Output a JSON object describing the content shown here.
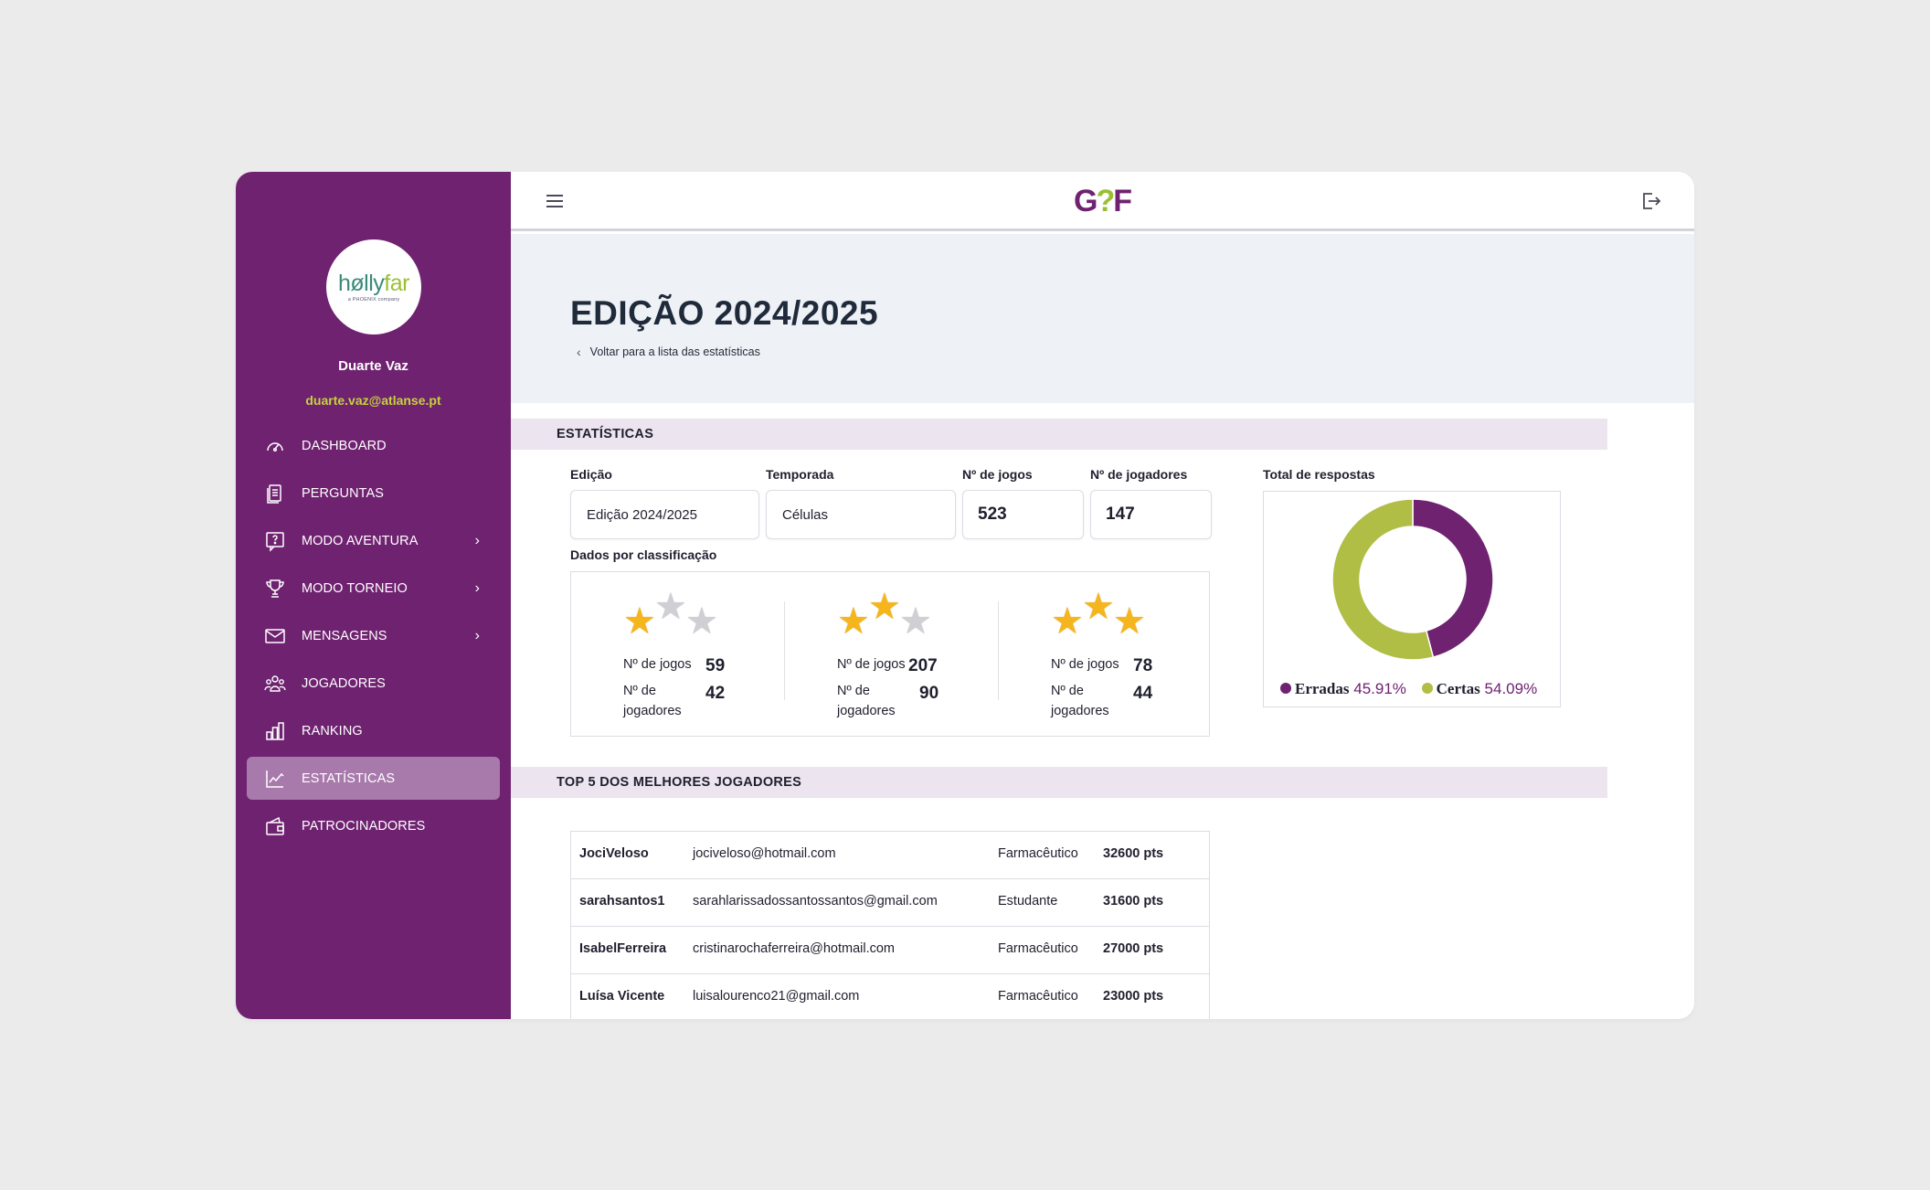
{
  "sidebar": {
    "logo_text_a": "hølly",
    "logo_text_b": "far",
    "logo_sub": "a PHOENIX company",
    "user_name": "Duarte Vaz",
    "user_email": "duarte.vaz@atlanse.pt",
    "items": [
      {
        "label": "DASHBOARD",
        "icon": "gauge-icon"
      },
      {
        "label": "PERGUNTAS",
        "icon": "document-icon"
      },
      {
        "label": "MODO AVENTURA",
        "icon": "question-bubble-icon"
      },
      {
        "label": "MODO TORNEIO",
        "icon": "trophy-icon"
      },
      {
        "label": "MENSAGENS",
        "icon": "mail-icon"
      },
      {
        "label": "JOGADORES",
        "icon": "users-icon"
      },
      {
        "label": "RANKING",
        "icon": "bar-chart-icon"
      },
      {
        "label": "ESTATÍSTICAS",
        "icon": "line-chart-icon"
      },
      {
        "label": "PATROCINADORES",
        "icon": "wallet-icon"
      }
    ],
    "active": "ESTATÍSTICAS"
  },
  "header": {
    "logo_g": "G",
    "logo_q": "?",
    "logo_f": "F"
  },
  "page": {
    "title": "EDIÇÃO 2024/2025",
    "back_link": "Voltar para a lista das estatísticas"
  },
  "stats": {
    "section_title": "ESTATÍSTICAS",
    "edition_label": "Edição",
    "edition_value": "Edição 2024/2025",
    "season_label": "Temporada",
    "season_value": "Células",
    "games_label": "Nº de jogos",
    "games_value": "523",
    "players_label": "Nº de jogadores",
    "players_value": "147",
    "class_label": "Dados por classificação",
    "games_row_label": "Nº de jogos",
    "players_row_label_1": "Nº de",
    "players_row_label_2": "jogadores",
    "classifications": [
      {
        "stars": 1,
        "games": "59",
        "players": "42"
      },
      {
        "stars": 2,
        "games": "207",
        "players": "90"
      },
      {
        "stars": 3,
        "games": "78",
        "players": "44"
      }
    ],
    "answers_label": "Total de respostas"
  },
  "chart_data": {
    "type": "pie",
    "donut": true,
    "categories": [
      "Erradas",
      "Certas"
    ],
    "values": [
      45.91,
      54.09
    ],
    "value_labels": [
      "45.91%",
      "54.09%"
    ],
    "colors": [
      "#6f2270",
      "#b0be45"
    ],
    "title": "Total de respostas",
    "legend": "bottom"
  },
  "top5": {
    "section_title": "TOP 5 DOS MELHORES JOGADORES",
    "rows": [
      {
        "user": "JociVeloso",
        "email": "jociveloso@hotmail.com",
        "role": "Farmacêutico",
        "points": "32600 pts"
      },
      {
        "user": "sarahsantos1",
        "email": "sarahlarissadossantossantos@gmail.com",
        "role": "Estudante",
        "points": "31600 pts"
      },
      {
        "user": "IsabelFerreira",
        "email": "cristinarochaferreira@hotmail.com",
        "role": "Farmacêutico",
        "points": "27000 pts"
      },
      {
        "user": "Luísa Vicente",
        "email": "luisalourenco21@gmail.com",
        "role": "Farmacêutico",
        "points": "23000 pts"
      }
    ]
  },
  "colors": {
    "primary": "#6f2270",
    "accent": "#c5d33a",
    "active_nav": "#a87aac",
    "section_bar": "#ece4ee"
  }
}
